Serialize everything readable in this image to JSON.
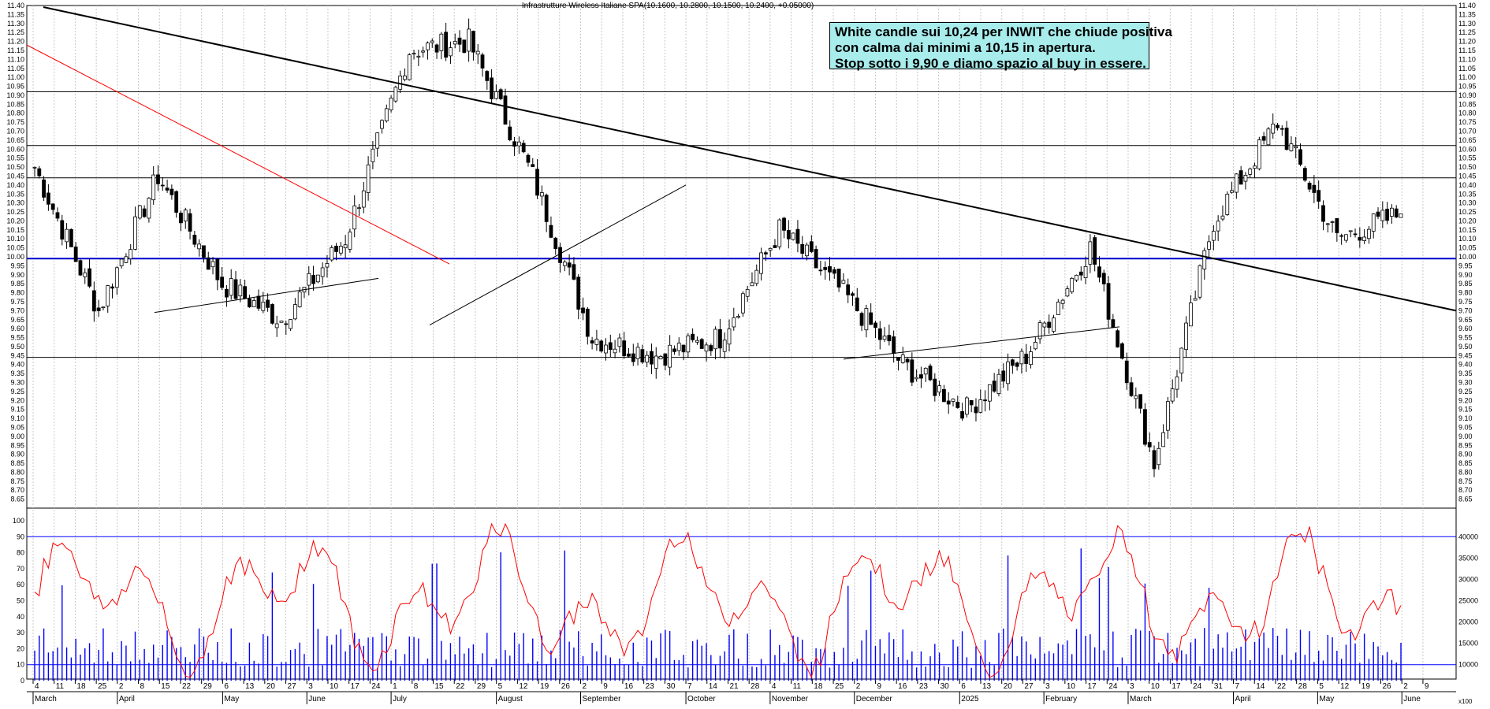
{
  "title": "Infrastrutture Wireless Italiane SPA(10.1600, 10.2800, 10.1500, 10.2400, +0.05000)",
  "annotation": {
    "line1": "White candle sui 10,24 per INWIT che chiude positiva",
    "line2": "con calma dai minimi a 10,15 in apertura.",
    "line3": "Stop sotto i 9,90 e diamo spazio al buy in essere."
  },
  "axis_corner_label": "x100",
  "colors": {
    "up": "#ffffff",
    "down": "#000000",
    "support": "#0000cc",
    "stoch": "#ff0000",
    "volume": "#0000ff",
    "redtrend": "#ff0000"
  },
  "chart_data": [
    {
      "type": "candlestick",
      "title": "Infrastrutture Wireless Italiane SPA(10.1600, 10.2800, 10.1500, 10.2400, +0.05000)",
      "ylim": [
        8.6,
        11.4
      ],
      "yticks": [
        "11.40",
        "11.35",
        "11.30",
        "11.25",
        "11.20",
        "11.15",
        "11.10",
        "11.05",
        "11.00",
        "10.95",
        "10.90",
        "10.85",
        "10.80",
        "10.75",
        "10.70",
        "10.65",
        "10.60",
        "10.55",
        "10.50",
        "10.45",
        "10.40",
        "10.35",
        "10.30",
        "10.25",
        "10.20",
        "10.15",
        "10.10",
        "10.05",
        "10.00",
        "9.95",
        "9.90",
        "9.85",
        "9.80",
        "9.75",
        "9.70",
        "9.65",
        "9.60",
        "9.55",
        "9.50",
        "9.45",
        "9.40",
        "9.35",
        "9.30",
        "9.25",
        "9.20",
        "9.15",
        "9.10",
        "9.05",
        "9.00",
        "8.95",
        "8.90",
        "8.85",
        "8.80",
        "8.75",
        "8.70",
        "8.65"
      ],
      "horizontal_levels": [
        10.92,
        10.62,
        10.44,
        9.99,
        9.44
      ],
      "key_points": [
        {
          "x": "Mar",
          "y": 10.5
        },
        {
          "x": "Apr-15",
          "y": 9.7
        },
        {
          "x": "May-20",
          "y": 10.45
        },
        {
          "x": "Jun-3",
          "y": 9.85
        },
        {
          "x": "Jul-8",
          "y": 9.65
        },
        {
          "x": "Aug-5",
          "y": 10.1
        },
        {
          "x": "Sep-16",
          "y": 11.15
        },
        {
          "x": "Sep-30",
          "y": 11.2
        },
        {
          "x": "Oct-28",
          "y": 10.45
        },
        {
          "x": "Nov-4",
          "y": 9.55
        },
        {
          "x": "Nov-18",
          "y": 9.45
        },
        {
          "x": "Dec-16",
          "y": 9.55
        },
        {
          "x": "Jan-13",
          "y": 10.15
        },
        {
          "x": "Feb-10",
          "y": 9.8
        },
        {
          "x": "Feb-24",
          "y": 9.4
        },
        {
          "x": "Mar-3",
          "y": 9.15
        },
        {
          "x": "Mar-24",
          "y": 9.45
        },
        {
          "x": "Apr-4",
          "y": 10.05
        },
        {
          "x": "Apr-7",
          "y": 8.85
        },
        {
          "x": "Apr-22",
          "y": 10.2
        },
        {
          "x": "May-5",
          "y": 10.75
        },
        {
          "x": "May-19",
          "y": 10.1
        },
        {
          "x": "May-26",
          "y": 10.24
        }
      ]
    },
    {
      "type": "line",
      "name": "stochastic + volume",
      "ylim": [
        0,
        100
      ],
      "yticks": [
        "100",
        "90",
        "80",
        "70",
        "60",
        "50",
        "40",
        "30",
        "20",
        "10",
        "0"
      ],
      "right_ticks": [
        "40000",
        "35000",
        "30000",
        "25000",
        "20000",
        "15000",
        "10000"
      ],
      "levels": [
        90,
        10
      ]
    }
  ],
  "x_axis": {
    "days": [
      "4",
      "11",
      "18",
      "25",
      "2",
      "8",
      "15",
      "22",
      "29",
      "6",
      "13",
      "20",
      "27",
      "3",
      "10",
      "17",
      "24",
      "1",
      "8",
      "15",
      "22",
      "29",
      "5",
      "12",
      "19",
      "26",
      "2",
      "9",
      "16",
      "23",
      "30",
      "7",
      "14",
      "21",
      "28",
      "4",
      "11",
      "18",
      "25",
      "2",
      "9",
      "16",
      "23",
      "30",
      "6",
      "13",
      "20",
      "27",
      "3",
      "10",
      "17",
      "24",
      "3",
      "10",
      "17",
      "24",
      "31",
      "7",
      "14",
      "22",
      "28",
      "5",
      "12",
      "19",
      "26",
      "2",
      "9"
    ],
    "months": [
      "March",
      "April",
      "May",
      "June",
      "July",
      "August",
      "September",
      "October",
      "November",
      "December",
      "2025",
      "February",
      "March",
      "April",
      "May",
      "June"
    ]
  }
}
